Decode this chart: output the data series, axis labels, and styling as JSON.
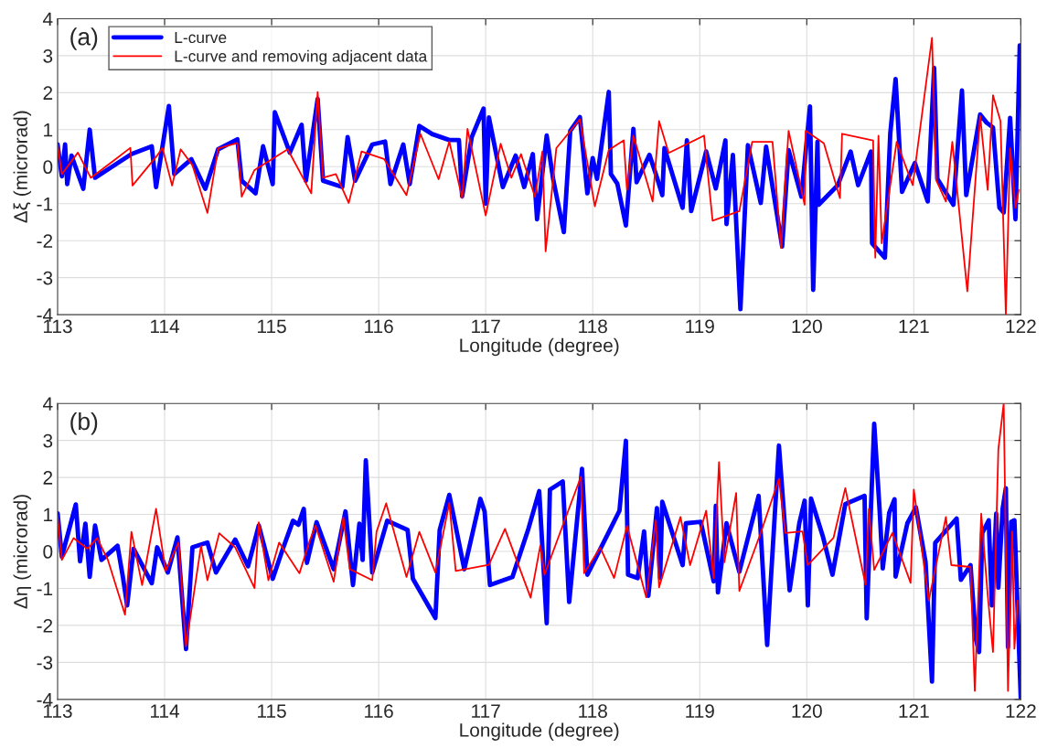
{
  "chart_data": [
    {
      "type": "line",
      "xlabel": "Longitude (degree)",
      "ylabel": "Δξ (microrad)",
      "annotations": [
        "(a)"
      ],
      "xlim": [
        113,
        122
      ],
      "xticks": [
        113,
        114,
        115,
        116,
        117,
        118,
        119,
        120,
        121,
        122
      ],
      "ylim": [
        -4,
        4
      ],
      "yticks": [
        -4,
        -3,
        -2,
        -1,
        0,
        1,
        2,
        3,
        4
      ],
      "grid": true,
      "legend": "top left",
      "series": [
        {
          "name": "L-curve",
          "color": "#0000ff",
          "x": [
            113.0,
            113.04,
            113.07,
            113.09,
            113.13,
            113.24,
            113.3,
            113.35,
            113.51,
            113.69,
            113.88,
            113.92,
            114.04,
            114.09,
            114.25,
            114.38,
            114.5,
            114.68,
            114.72,
            114.85,
            114.92,
            115.01,
            115.03,
            115.17,
            115.28,
            115.32,
            115.43,
            115.48,
            115.66,
            115.71,
            115.78,
            115.94,
            116.06,
            116.11,
            116.23,
            116.29,
            116.38,
            116.5,
            116.66,
            116.75,
            116.78,
            116.87,
            116.98,
            117.0,
            117.03,
            117.16,
            117.28,
            117.36,
            117.44,
            117.48,
            117.57,
            117.63,
            117.73,
            117.79,
            117.88,
            117.95,
            118.0,
            118.04,
            118.15,
            118.17,
            118.23,
            118.31,
            118.38,
            118.41,
            118.53,
            118.6,
            118.65,
            118.67,
            118.84,
            118.88,
            118.92,
            119.06,
            119.15,
            119.24,
            119.25,
            119.31,
            119.38,
            119.45,
            119.57,
            119.62,
            119.77,
            119.83,
            119.95,
            120.03,
            120.06,
            120.1,
            120.11,
            120.29,
            120.41,
            120.48,
            120.6,
            120.61,
            120.73,
            120.78,
            120.83,
            120.89,
            121.01,
            121.13,
            121.19,
            121.22,
            121.37,
            121.45,
            121.49,
            121.62,
            121.68,
            121.74,
            121.8,
            121.84,
            121.9,
            121.95,
            121.99
          ],
          "values": [
            0.6,
            -0.26,
            0.6,
            -0.47,
            0.3,
            -0.6,
            1.0,
            -0.3,
            0.0,
            0.34,
            0.55,
            -0.55,
            1.64,
            -0.2,
            0.2,
            -0.6,
            0.47,
            0.74,
            -0.38,
            -0.72,
            0.55,
            -0.47,
            1.47,
            0.38,
            1.13,
            -0.38,
            1.83,
            -0.38,
            -0.55,
            0.8,
            -0.38,
            0.6,
            0.68,
            -0.47,
            0.6,
            -0.47,
            1.1,
            0.88,
            0.72,
            0.72,
            -0.8,
            0.8,
            1.57,
            -1.0,
            1.33,
            -0.55,
            0.3,
            -0.55,
            0.34,
            -1.42,
            0.84,
            -0.33,
            -1.77,
            0.97,
            1.34,
            -0.72,
            0.23,
            -0.33,
            2.02,
            -0.2,
            -0.46,
            -1.59,
            1.02,
            -0.42,
            0.32,
            -0.29,
            -0.77,
            0.5,
            -1.11,
            0.71,
            -1.2,
            0.41,
            -0.59,
            0.71,
            -1.55,
            0.32,
            -3.85,
            0.58,
            -0.98,
            0.54,
            -2.16,
            0.45,
            -0.81,
            1.63,
            -3.33,
            0.67,
            -1.03,
            -0.5,
            0.41,
            -0.5,
            0.41,
            -2.07,
            -2.46,
            0.89,
            2.37,
            -0.68,
            0.1,
            -0.94,
            2.67,
            -0.33,
            -1.03,
            2.06,
            -0.77,
            1.41,
            1.19,
            1.06,
            -1.11,
            -1.24,
            1.32,
            -1.42,
            3.28
          ]
        },
        {
          "name": "L-curve and removing adjacent data",
          "color": "#ff0000",
          "x": [
            113.0,
            113.04,
            113.19,
            113.31,
            113.54,
            113.68,
            113.7,
            113.93,
            113.98,
            114.07,
            114.15,
            114.26,
            114.4,
            114.5,
            114.68,
            114.72,
            114.84,
            115.15,
            115.37,
            115.43,
            115.48,
            115.6,
            115.72,
            115.84,
            116.05,
            116.26,
            116.39,
            116.56,
            116.66,
            116.78,
            116.83,
            117.0,
            117.14,
            117.24,
            117.33,
            117.46,
            117.53,
            117.56,
            117.66,
            117.88,
            118.02,
            118.15,
            118.29,
            118.32,
            118.38,
            118.56,
            118.62,
            118.71,
            119.04,
            119.12,
            119.37,
            119.49,
            119.68,
            119.76,
            119.83,
            119.98,
            119.99,
            120.16,
            120.31,
            120.33,
            120.62,
            120.64,
            120.67,
            120.7,
            120.84,
            120.99,
            121.17,
            121.21,
            121.3,
            121.36,
            121.5,
            121.62,
            121.69,
            121.74,
            121.81,
            121.86,
            121.9,
            121.95,
            121.98
          ],
          "values": [
            0.6,
            -0.2,
            0.38,
            -0.3,
            0.2,
            0.51,
            -0.51,
            0.3,
            0.51,
            -0.51,
            0.47,
            0.04,
            -1.25,
            0.49,
            0.64,
            -0.81,
            -0.09,
            0.47,
            -0.72,
            2.02,
            -0.3,
            -0.2,
            -0.98,
            0.41,
            0.21,
            -0.77,
            0.89,
            -0.34,
            0.68,
            -0.85,
            1.02,
            -1.32,
            0.62,
            -0.3,
            0.34,
            -0.81,
            0.41,
            -2.29,
            0.5,
            1.28,
            -1.07,
            0.45,
            0.71,
            -0.63,
            0.84,
            -0.94,
            1.23,
            0.37,
            0.84,
            -1.46,
            -1.2,
            0.67,
            0.67,
            -2.2,
            0.97,
            -1.03,
            0.97,
            0.63,
            -0.85,
            0.89,
            0.71,
            -2.46,
            0.84,
            -2.07,
            0.67,
            -0.5,
            3.48,
            -0.37,
            -0.94,
            0.67,
            -3.37,
            1.37,
            -0.63,
            1.93,
            1.23,
            -4.0,
            0.5,
            -1.11,
            -0.63
          ]
        }
      ]
    },
    {
      "type": "line",
      "xlabel": "Longitude (degree)",
      "ylabel": "Δη (microrad)",
      "annotations": [
        "(b)"
      ],
      "xlim": [
        113,
        122
      ],
      "xticks": [
        113,
        114,
        115,
        116,
        117,
        118,
        119,
        120,
        121,
        122
      ],
      "ylim": [
        -4,
        4
      ],
      "yticks": [
        -4,
        -3,
        -2,
        -1,
        0,
        1,
        2,
        3,
        4
      ],
      "grid": true,
      "series": [
        {
          "color": "#0000ff",
          "x": [
            113.0,
            113.04,
            113.17,
            113.21,
            113.26,
            113.3,
            113.35,
            113.41,
            113.56,
            113.61,
            113.65,
            113.71,
            113.88,
            113.93,
            114.03,
            114.12,
            114.2,
            114.26,
            114.4,
            114.48,
            114.66,
            114.78,
            114.88,
            115.01,
            115.1,
            115.2,
            115.25,
            115.3,
            115.33,
            115.42,
            115.58,
            115.69,
            115.76,
            115.82,
            115.85,
            115.88,
            115.94,
            116.08,
            116.27,
            116.32,
            116.53,
            116.57,
            116.66,
            116.8,
            116.95,
            116.99,
            117.04,
            117.25,
            117.4,
            117.5,
            117.57,
            117.6,
            117.72,
            117.78,
            117.9,
            117.95,
            118.16,
            118.25,
            118.31,
            118.33,
            118.42,
            118.48,
            118.52,
            118.6,
            118.63,
            118.65,
            118.84,
            118.87,
            119.01,
            119.13,
            119.15,
            119.17,
            119.25,
            119.37,
            119.55,
            119.63,
            119.66,
            119.74,
            119.84,
            119.93,
            119.98,
            120.01,
            120.04,
            120.15,
            120.24,
            120.36,
            120.54,
            120.56,
            120.63,
            120.68,
            120.71,
            120.77,
            120.82,
            120.83,
            120.94,
            121.02,
            121.11,
            121.17,
            121.2,
            121.4,
            121.44,
            121.53,
            121.58,
            121.61,
            121.64,
            121.7,
            121.73,
            121.77,
            121.79,
            121.83,
            121.86,
            121.88,
            121.91,
            121.94,
            122.0
          ],
          "values": [
            1.03,
            -0.14,
            1.27,
            -0.27,
            0.75,
            -0.69,
            0.7,
            -0.23,
            0.15,
            -0.69,
            -1.46,
            0.07,
            -0.86,
            0.11,
            -0.57,
            0.38,
            -2.64,
            0.11,
            0.24,
            -0.57,
            0.32,
            -0.4,
            0.7,
            -0.74,
            0.03,
            0.83,
            0.72,
            1.15,
            -0.31,
            0.79,
            -0.48,
            1.08,
            -0.91,
            0.75,
            -0.23,
            2.46,
            -0.57,
            0.83,
            0.58,
            -0.74,
            -1.8,
            0.58,
            1.53,
            -0.48,
            1.42,
            1.08,
            -0.91,
            -0.69,
            0.62,
            1.63,
            -1.94,
            1.67,
            1.89,
            -1.37,
            2.23,
            -0.63,
            0.58,
            1.1,
            2.99,
            -0.63,
            -0.72,
            0.54,
            -1.2,
            1.17,
            -0.72,
            1.34,
            -0.37,
            0.76,
            0.8,
            -0.81,
            1.23,
            -1.11,
            0.76,
            -0.55,
            1.5,
            -2.53,
            -0.98,
            2.86,
            -1.05,
            0.76,
            1.37,
            -1.46,
            1.43,
            0.41,
            -0.63,
            1.28,
            1.5,
            -1.81,
            3.45,
            1.15,
            -0.46,
            1.04,
            1.41,
            -0.68,
            0.76,
            1.19,
            -0.29,
            -3.52,
            0.23,
            0.89,
            -0.77,
            -0.37,
            -2.37,
            -2.72,
            0.5,
            0.84,
            -1.46,
            1.02,
            -0.98,
            1.15,
            1.71,
            -2.59,
            0.8,
            0.84,
            -4.0
          ]
        },
        {
          "color": "#ff0000",
          "x": [
            113.0,
            113.04,
            113.15,
            113.28,
            113.37,
            113.47,
            113.63,
            113.69,
            113.79,
            113.92,
            114.01,
            114.13,
            114.2,
            114.34,
            114.4,
            114.51,
            114.66,
            114.84,
            114.88,
            114.97,
            115.07,
            115.26,
            115.35,
            115.41,
            115.58,
            115.67,
            115.73,
            115.94,
            115.98,
            116.07,
            116.26,
            116.38,
            116.53,
            116.66,
            116.72,
            117.03,
            117.18,
            117.42,
            117.51,
            117.55,
            117.68,
            117.89,
            117.92,
            118.07,
            118.2,
            118.32,
            118.5,
            118.59,
            118.62,
            118.82,
            118.91,
            119.06,
            119.13,
            119.18,
            119.23,
            119.34,
            119.37,
            119.57,
            119.74,
            119.8,
            119.96,
            120.01,
            120.25,
            120.36,
            120.52,
            120.55,
            120.58,
            120.63,
            120.8,
            120.97,
            121.0,
            121.14,
            121.3,
            121.35,
            121.53,
            121.57,
            121.63,
            121.69,
            121.74,
            121.79,
            121.84,
            121.88,
            121.92,
            121.94,
            121.97
          ],
          "values": [
            0.96,
            -0.23,
            0.36,
            0.07,
            0.36,
            -0.23,
            -1.71,
            0.53,
            -0.91,
            1.15,
            -0.53,
            0.24,
            -2.56,
            0.15,
            -0.78,
            0.49,
            0.11,
            -0.99,
            0.79,
            -0.78,
            0.24,
            -0.59,
            0.24,
            0.7,
            -0.82,
            0.92,
            -0.48,
            -0.78,
            0.53,
            1.3,
            -0.69,
            0.53,
            -0.57,
            1.31,
            -0.53,
            -0.36,
            0.61,
            -1.25,
            0.15,
            -0.63,
            0.39,
            2.02,
            -0.59,
            0.1,
            -0.72,
            0.69,
            -1.24,
            0.84,
            -0.97,
            0.93,
            -0.37,
            1.1,
            -0.72,
            2.41,
            -0.29,
            1.58,
            -1.07,
            0.5,
            1.96,
            0.5,
            0.54,
            -0.37,
            0.37,
            1.71,
            -0.5,
            -0.9,
            1.15,
            -0.5,
            0.5,
            -0.85,
            1.67,
            -1.33,
            0.93,
            -0.37,
            -0.42,
            -3.77,
            1.02,
            -1.16,
            -2.72,
            2.76,
            4.0,
            -3.77,
            0.54,
            -2.63,
            -1.33
          ]
        }
      ]
    }
  ]
}
